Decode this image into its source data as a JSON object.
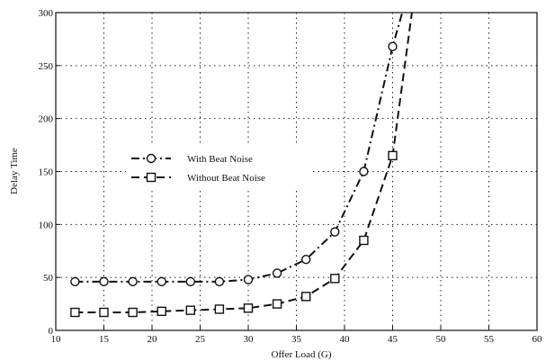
{
  "chart_data": {
    "type": "line",
    "title": "",
    "xlabel": "Offer Load (G)",
    "ylabel": "Delay Time",
    "xlim": [
      10,
      60
    ],
    "ylim": [
      0,
      300
    ],
    "xticks": [
      10,
      15,
      20,
      25,
      30,
      35,
      40,
      45,
      50,
      55,
      60
    ],
    "yticks": [
      0,
      50,
      100,
      150,
      200,
      250,
      300
    ],
    "grid": true,
    "legend_placement": "center-left",
    "series": [
      {
        "name": "With Beat Noise",
        "marker": "circle",
        "line_style": "dash-dot",
        "color": "#111111",
        "x": [
          12,
          15,
          18,
          21,
          24,
          27,
          30,
          33,
          36,
          39,
          42,
          45,
          46
        ],
        "y": [
          46,
          46,
          46,
          46,
          46,
          46,
          48,
          54,
          67,
          93,
          150,
          268,
          300
        ]
      },
      {
        "name": "Without Beat Noise",
        "marker": "square",
        "line_style": "dashed",
        "color": "#111111",
        "x": [
          12,
          15,
          18,
          21,
          24,
          27,
          30,
          33,
          36,
          39,
          42,
          45,
          47
        ],
        "y": [
          17,
          17,
          17,
          18,
          19,
          20,
          21,
          25,
          32,
          49,
          85,
          165,
          300
        ]
      }
    ]
  }
}
